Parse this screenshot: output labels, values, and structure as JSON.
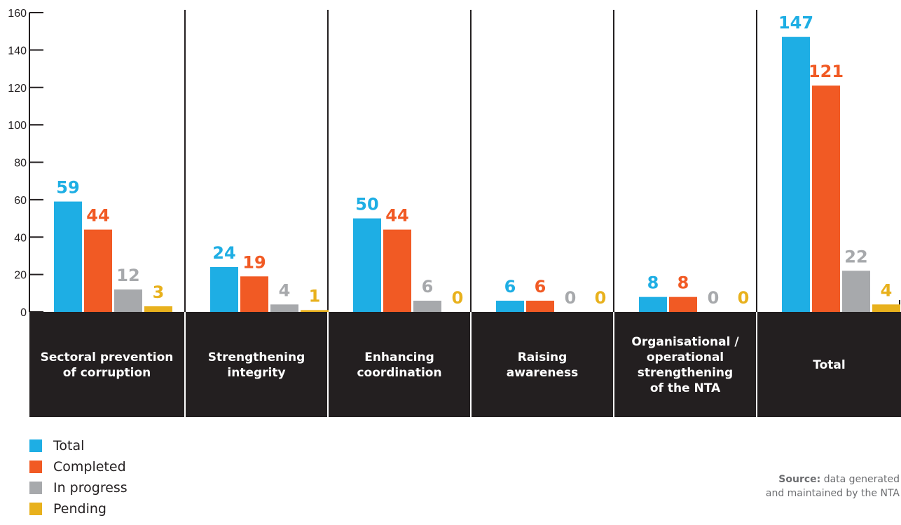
{
  "chart_data": {
    "type": "bar",
    "ylim": [
      0,
      160
    ],
    "yticks": [
      0,
      20,
      40,
      60,
      80,
      100,
      120,
      140,
      160
    ],
    "categories": [
      [
        "Sectoral prevention",
        "of corruption"
      ],
      [
        "Strengthening",
        "integrity"
      ],
      [
        "Enhancing",
        "coordination"
      ],
      [
        "Raising",
        "awareness"
      ],
      [
        "Organisational /",
        "operational",
        "strengthening",
        "of the NTA"
      ],
      [
        "Total"
      ]
    ],
    "series": [
      {
        "name": "Total",
        "color": "#1eaee4",
        "values": [
          59,
          24,
          50,
          6,
          8,
          147
        ]
      },
      {
        "name": "Completed",
        "color": "#f15a24",
        "values": [
          44,
          19,
          44,
          6,
          8,
          121
        ]
      },
      {
        "name": "In progress",
        "color": "#a7a9ac",
        "values": [
          12,
          4,
          6,
          0,
          0,
          22
        ]
      },
      {
        "name": "Pending",
        "color": "#e8b11d",
        "values": [
          3,
          1,
          0,
          0,
          0,
          4
        ]
      }
    ],
    "grid": false,
    "legend_position": "bottom-left"
  },
  "source": {
    "label": "Source:",
    "line1": " data generated",
    "line2": "and maintained by the NTA"
  },
  "colors": {
    "category_band": "#231f20",
    "axis": "#231f20"
  }
}
